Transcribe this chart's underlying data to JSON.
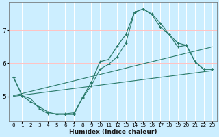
{
  "title": "",
  "xlabel": "Humidex (Indice chaleur)",
  "bg_color": "#cceeff",
  "grid_color": "#ffffff",
  "line_color": "#2a7a6a",
  "xlim": [
    -0.5,
    23.5
  ],
  "ylim": [
    4.25,
    7.85
  ],
  "yticks": [
    5,
    6,
    7
  ],
  "xticks": [
    0,
    1,
    2,
    3,
    4,
    5,
    6,
    7,
    8,
    9,
    10,
    11,
    12,
    13,
    14,
    15,
    16,
    17,
    18,
    19,
    20,
    21,
    22,
    23
  ],
  "series_wavy_x": [
    0,
    1,
    2,
    3,
    4,
    5,
    6,
    7,
    8,
    9,
    10,
    11,
    12,
    13,
    14,
    15,
    16,
    17,
    18,
    19,
    20,
    21,
    22,
    23
  ],
  "series_wavy_y": [
    5.58,
    5.02,
    4.83,
    4.68,
    4.52,
    4.45,
    4.45,
    4.45,
    4.97,
    5.42,
    6.05,
    6.12,
    6.52,
    6.88,
    7.55,
    7.65,
    7.48,
    7.1,
    6.88,
    6.5,
    6.55,
    6.05,
    5.82,
    5.82
  ],
  "series_smooth_x": [
    0,
    1,
    2,
    3,
    4,
    5,
    6,
    7,
    8,
    9,
    10,
    11,
    12,
    13,
    14,
    15,
    16,
    17,
    18,
    19,
    20,
    21,
    22,
    23
  ],
  "series_smooth_y": [
    5.58,
    5.02,
    4.93,
    4.62,
    4.47,
    4.47,
    4.47,
    4.5,
    4.95,
    5.32,
    5.82,
    5.97,
    6.2,
    6.62,
    7.55,
    7.65,
    7.5,
    7.22,
    6.88,
    6.62,
    6.55,
    6.05,
    5.82,
    5.82
  ],
  "line1_x": [
    0,
    23
  ],
  "line1_y": [
    5.0,
    5.78
  ],
  "line2_x": [
    0,
    23
  ],
  "line2_y": [
    5.02,
    6.5
  ]
}
